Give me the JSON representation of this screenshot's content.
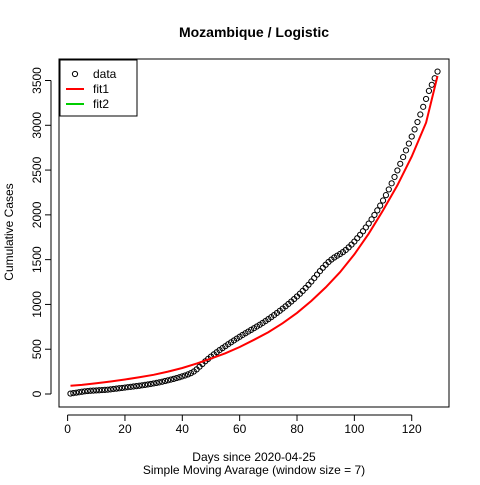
{
  "chart_data": {
    "type": "scatter",
    "title": "Mozambique / Logistic",
    "xlabel": "Days since 2020-04-25",
    "xlabel2": "Simple Moving Avarage (window size = 7)",
    "ylabel": "Cumulative Cases",
    "xlim": [
      -3,
      133
    ],
    "ylim": [
      -145,
      3740
    ],
    "x_ticks": [
      0,
      20,
      40,
      60,
      80,
      100,
      120
    ],
    "y_ticks": [
      0,
      500,
      1000,
      1500,
      2000,
      2500,
      3000,
      3500
    ],
    "x_tick_labels": [
      "0",
      "20",
      "40",
      "60",
      "80",
      "100",
      "120"
    ],
    "y_tick_labels": [
      "0",
      "500",
      "1000",
      "1500",
      "2000",
      "2500",
      "3000",
      "3500"
    ],
    "grid": false,
    "legend": {
      "position": "top-left",
      "entries": [
        {
          "label": "data",
          "marker": "open-circle",
          "color": "#000000"
        },
        {
          "label": "fit1",
          "marker": "line",
          "color": "#ff0000"
        },
        {
          "label": "fit2",
          "marker": "line",
          "color": "#00cd00"
        }
      ]
    },
    "series": [
      {
        "name": "data",
        "style": "points",
        "color": "#000000",
        "x": [
          1,
          2,
          3,
          4,
          5,
          6,
          7,
          8,
          9,
          10,
          11,
          12,
          13,
          14,
          15,
          16,
          17,
          18,
          19,
          20,
          21,
          22,
          23,
          24,
          25,
          26,
          27,
          28,
          29,
          30,
          31,
          32,
          33,
          34,
          35,
          36,
          37,
          38,
          39,
          40,
          41,
          42,
          43,
          44,
          45,
          46,
          47,
          48,
          49,
          50,
          51,
          52,
          53,
          54,
          55,
          56,
          57,
          58,
          59,
          60,
          61,
          62,
          63,
          64,
          65,
          66,
          67,
          68,
          69,
          70,
          71,
          72,
          73,
          74,
          75,
          76,
          77,
          78,
          79,
          80,
          81,
          82,
          83,
          84,
          85,
          86,
          87,
          88,
          89,
          90,
          91,
          92,
          93,
          94,
          95,
          96,
          97,
          98,
          99,
          100,
          101,
          102,
          103,
          104,
          105,
          106,
          107,
          108,
          109,
          110,
          111,
          112,
          113,
          114,
          115,
          116,
          117,
          118,
          119,
          120,
          121,
          122,
          123,
          124,
          125,
          126,
          127,
          128,
          129
        ],
        "y": [
          5,
          10,
          15,
          20,
          25,
          30,
          33,
          36,
          38,
          40,
          42,
          44,
          46,
          48,
          52,
          56,
          60,
          64,
          68,
          72,
          76,
          80,
          84,
          88,
          92,
          97,
          102,
          107,
          112,
          118,
          124,
          130,
          137,
          145,
          153,
          161,
          169,
          178,
          187,
          197,
          207,
          219,
          233,
          251,
          275,
          305,
          335,
          365,
          392,
          418,
          443,
          467,
          490,
          512,
          534,
          556,
          577,
          598,
          619,
          639,
          659,
          678,
          697,
          716,
          735,
          754,
          773,
          793,
          814,
          836,
          858,
          881,
          905,
          929,
          954,
          979,
          1005,
          1032,
          1060,
          1089,
          1119,
          1151,
          1184,
          1219,
          1256,
          1294,
          1333,
          1372,
          1409,
          1443,
          1474,
          1501,
          1524,
          1544,
          1563,
          1584,
          1608,
          1637,
          1668,
          1702,
          1739,
          1777,
          1817,
          1859,
          1903,
          1950,
          1999,
          2050,
          2103,
          2160,
          2220,
          2284,
          2352,
          2423,
          2496,
          2570,
          2645,
          2720,
          2796,
          2874,
          2954,
          3036,
          3120,
          3206,
          3294,
          3384,
          3452,
          3525,
          3600
        ]
      },
      {
        "name": "fit1",
        "style": "line",
        "color": "#ff0000",
        "x": [
          1,
          5,
          10,
          15,
          20,
          25,
          30,
          35,
          40,
          45,
          50,
          55,
          60,
          65,
          70,
          75,
          80,
          85,
          90,
          95,
          100,
          105,
          110,
          115,
          120,
          125,
          129
        ],
        "y": [
          92,
          102,
          120,
          140,
          162,
          187,
          215,
          250,
          290,
          340,
          395,
          455,
          525,
          605,
          690,
          790,
          905,
          1040,
          1190,
          1360,
          1560,
          1790,
          2050,
          2330,
          2650,
          3030,
          3550
        ]
      }
    ]
  }
}
